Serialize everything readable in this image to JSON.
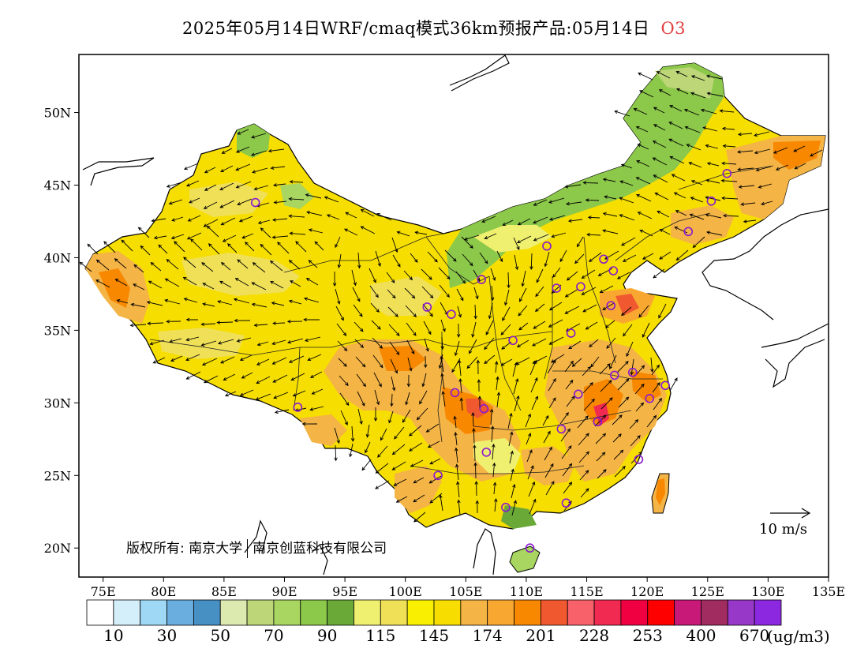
{
  "title": {
    "text": "2025年05月14日WRF/cmaq模式36km预报产品:05月14日",
    "species": "O3",
    "species_color": "#e04040"
  },
  "map": {
    "lon_range": [
      73,
      135
    ],
    "lat_range": [
      18,
      54
    ],
    "lon_ticks": [
      "75E",
      "80E",
      "85E",
      "90E",
      "95E",
      "100E",
      "105E",
      "110E",
      "115E",
      "120E",
      "125E",
      "130E",
      "135E"
    ],
    "lon_tick_values": [
      75,
      80,
      85,
      90,
      95,
      100,
      105,
      110,
      115,
      120,
      125,
      130,
      135
    ],
    "lat_ticks": [
      "20N",
      "25N",
      "30N",
      "35N",
      "40N",
      "45N",
      "50N"
    ],
    "lat_tick_values": [
      20,
      25,
      30,
      35,
      40,
      45,
      50
    ],
    "stations": [
      [
        87.6,
        43.8
      ],
      [
        91.1,
        29.7
      ],
      [
        101.8,
        36.6
      ],
      [
        103.8,
        36.1
      ],
      [
        106.3,
        38.5
      ],
      [
        111.7,
        40.8
      ],
      [
        116.4,
        39.9
      ],
      [
        117.2,
        39.1
      ],
      [
        114.5,
        38.0
      ],
      [
        112.5,
        37.9
      ],
      [
        117.0,
        36.7
      ],
      [
        113.7,
        34.8
      ],
      [
        108.9,
        34.3
      ],
      [
        104.1,
        30.7
      ],
      [
        106.5,
        29.6
      ],
      [
        106.7,
        26.6
      ],
      [
        102.7,
        25.0
      ],
      [
        108.3,
        22.8
      ],
      [
        110.3,
        20.0
      ],
      [
        113.3,
        23.1
      ],
      [
        112.9,
        28.2
      ],
      [
        114.3,
        30.6
      ],
      [
        115.9,
        28.7
      ],
      [
        117.3,
        31.9
      ],
      [
        118.8,
        32.1
      ],
      [
        120.2,
        30.3
      ],
      [
        121.5,
        31.2
      ],
      [
        119.3,
        26.1
      ],
      [
        123.4,
        41.8
      ],
      [
        125.3,
        43.9
      ],
      [
        126.6,
        45.8
      ]
    ]
  },
  "wind_reference": {
    "label": "10 m/s"
  },
  "legend": {
    "colors": [
      "#ffffff",
      "#d4eefa",
      "#9ed8f5",
      "#6aaedf",
      "#4690c4",
      "#dceab0",
      "#bcd678",
      "#a8d660",
      "#8cc84a",
      "#6aa838",
      "#f0f070",
      "#f0e058",
      "#f8f000",
      "#f8de00",
      "#f4b446",
      "#f8a830",
      "#f88800",
      "#f05830",
      "#f8606a",
      "#f02a50",
      "#f00040",
      "#ff0000",
      "#c81878",
      "#a02c60",
      "#9838c8",
      "#8c28e0"
    ],
    "labels": [
      "10",
      "30",
      "50",
      "70",
      "90",
      "115",
      "145",
      "174",
      "201",
      "228",
      "253",
      "400",
      "670"
    ],
    "unit": "(ug/m3)"
  },
  "copyright": {
    "prefix": "版权所有:",
    "org1": "南京大学",
    "org2": "南京创蓝科技有限公司"
  }
}
